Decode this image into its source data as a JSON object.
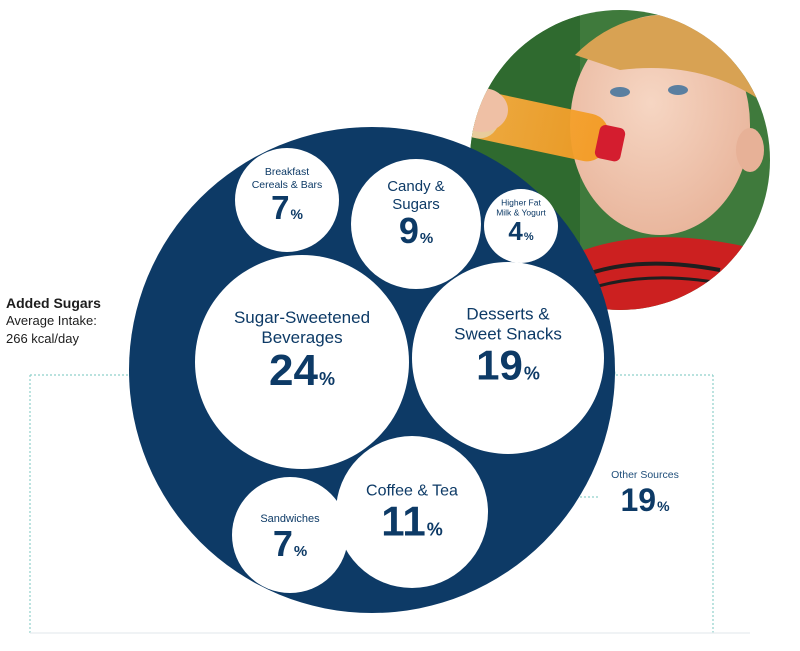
{
  "chart_data": {
    "type": "bubble",
    "header": {
      "title": "Added Sugars",
      "subtitle_line1": "Average Intake:",
      "subtitle_line2": "266 kcal/day"
    },
    "unit": "%",
    "outer_color": "#0d3a66",
    "inner_color": "#ffffff",
    "text_color": "#0d3a66",
    "outside_label_color": "#1f4e7a",
    "categories": [
      "Breakfast Cereals & Bars",
      "Candy & Sugars",
      "Higher Fat Milk & Yogurt",
      "Sugar-Sweetened Beverages",
      "Desserts & Sweet Snacks",
      "Sandwiches",
      "Coffee & Tea",
      "Other Sources"
    ],
    "label_lines": [
      [
        "Breakfast",
        "Cereals & Bars"
      ],
      [
        "Candy &",
        "Sugars"
      ],
      [
        "Higher Fat",
        "Milk & Yogurt"
      ],
      [
        "Sugar-Sweetened",
        "Beverages"
      ],
      [
        "Desserts &",
        "Sweet Snacks"
      ],
      [
        "Sandwiches"
      ],
      [
        "Coffee & Tea"
      ],
      [
        "Other Sources"
      ]
    ],
    "values": [
      7,
      9,
      4,
      24,
      19,
      7,
      11,
      19
    ],
    "value_labels": [
      "7",
      "9",
      "4",
      "24",
      "19",
      "7",
      "11",
      "19"
    ],
    "outside_category": "Other Sources",
    "photo": "child drinking orange beverage from bottle"
  }
}
